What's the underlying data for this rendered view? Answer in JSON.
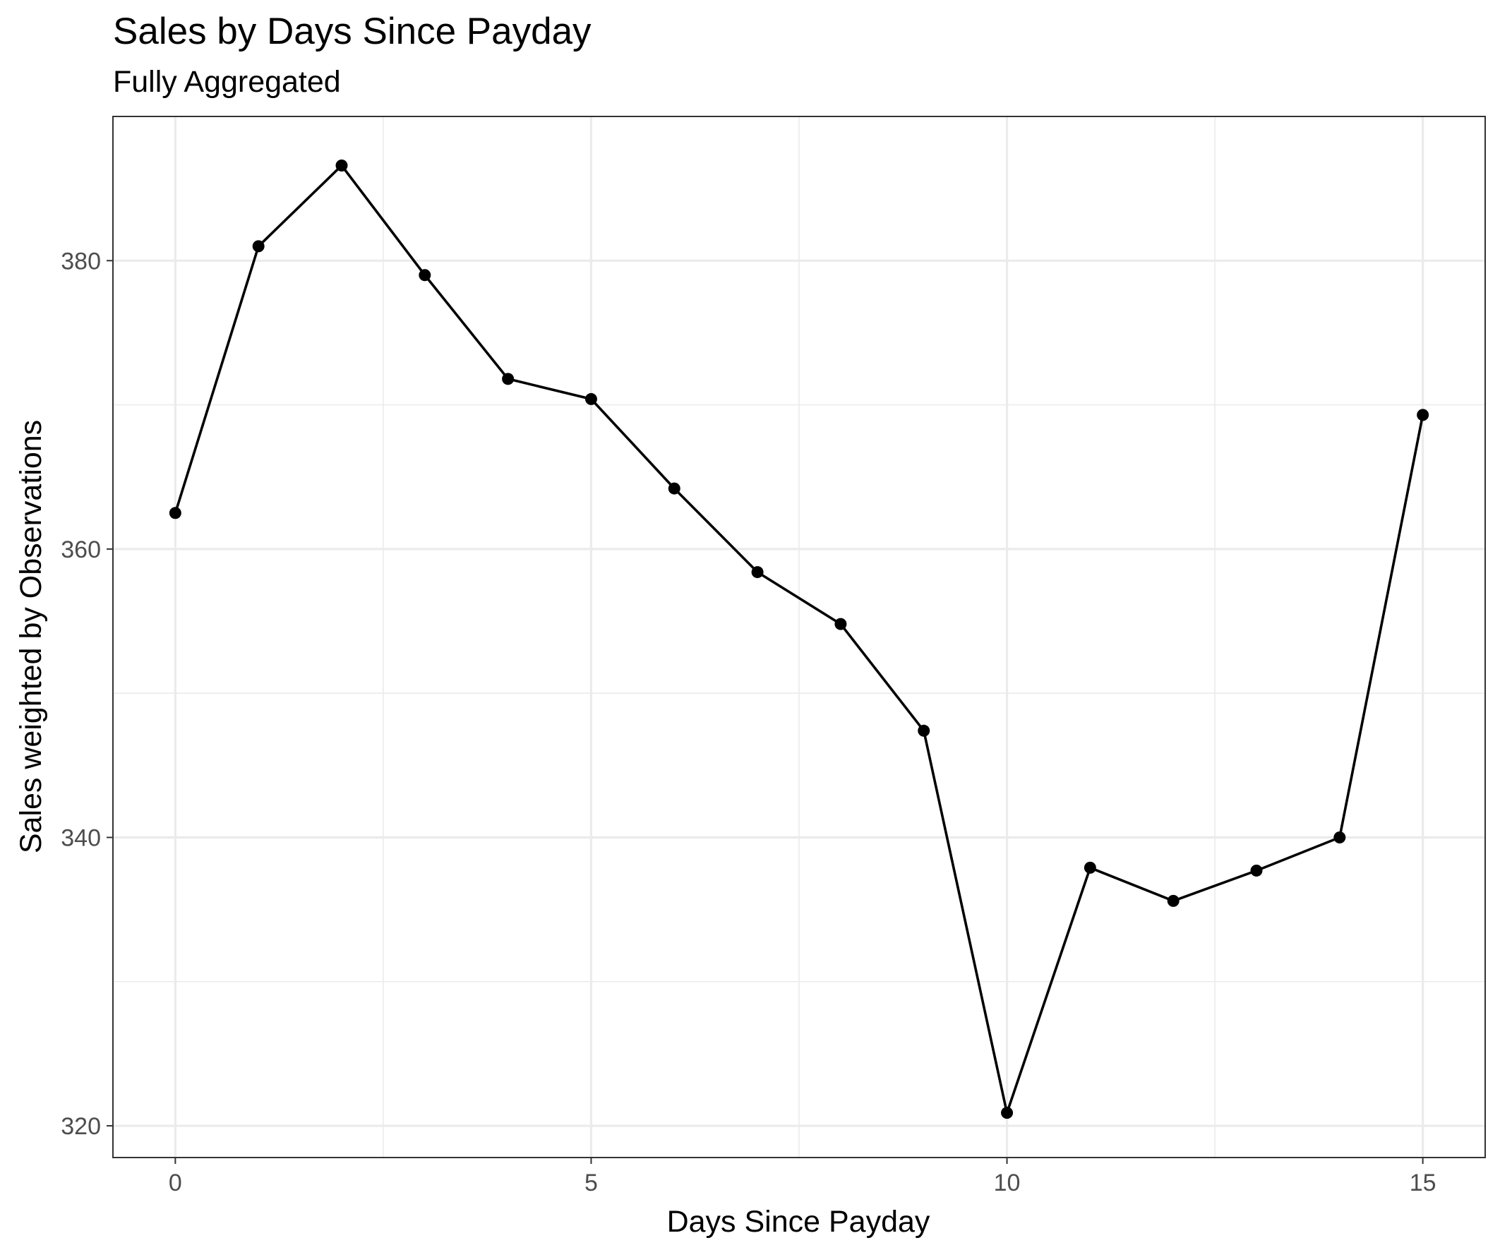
{
  "chart_data": {
    "type": "line",
    "title": "Sales by Days Since Payday",
    "subtitle": "Fully Aggregated",
    "xlabel": "Days Since Payday",
    "ylabel": "Sales weighted by Observations",
    "xlim": [
      -0.75,
      15.75
    ],
    "ylim": [
      317.8,
      390.0
    ],
    "x_ticks": [
      0,
      5,
      10,
      15
    ],
    "x_tick_labels": [
      "0",
      "5",
      "10",
      "15"
    ],
    "x_minor_ticks": [
      2.5,
      7.5,
      12.5
    ],
    "y_ticks": [
      320,
      340,
      360,
      380
    ],
    "y_tick_labels": [
      "320",
      "340",
      "360",
      "380"
    ],
    "y_minor_ticks": [
      330,
      350,
      370
    ],
    "grid": true,
    "legend": "none",
    "line_color": "#000000",
    "series": [
      {
        "x": [
          0,
          1,
          2,
          3,
          4,
          5,
          6,
          7,
          8,
          9,
          10,
          11,
          12,
          13,
          14,
          15
        ],
        "values": [
          362.5,
          381.0,
          386.6,
          379.0,
          371.8,
          370.4,
          364.2,
          358.4,
          354.8,
          347.4,
          320.9,
          337.9,
          335.6,
          337.7,
          340.0,
          369.3
        ]
      }
    ]
  }
}
